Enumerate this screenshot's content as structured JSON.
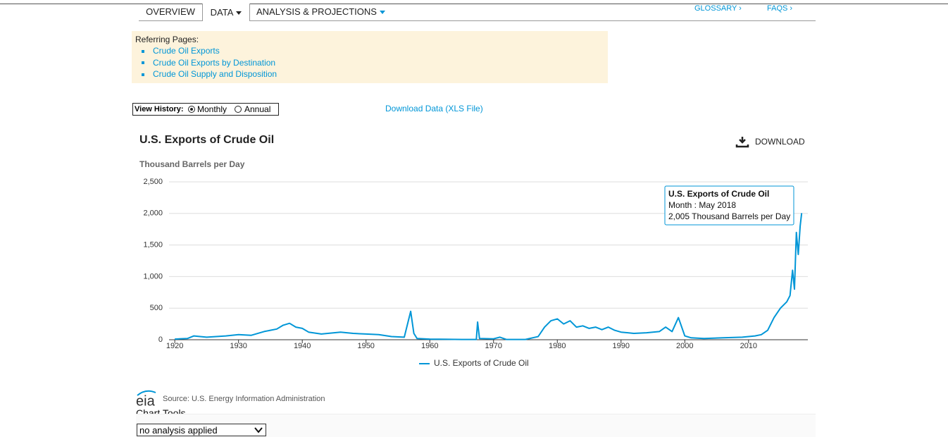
{
  "nav": {
    "tabs": [
      "OVERVIEW",
      "DATA",
      "ANALYSIS & PROJECTIONS"
    ],
    "links": [
      "GLOSSARY ›",
      "FAQS ›"
    ]
  },
  "referring": {
    "title": "Referring Pages:",
    "items": [
      "Crude Oil Exports",
      "Crude Oil Exports by Destination",
      "Crude Oil Supply and Disposition"
    ]
  },
  "view_history": {
    "label": "View History:",
    "options": [
      "Monthly",
      "Annual"
    ]
  },
  "download_data": "Download Data (XLS File)",
  "chart_data": {
    "type": "line",
    "title": "U.S. Exports of Crude Oil",
    "download_label": "DOWNLOAD",
    "y_label": "Thousand Barrels per Day",
    "x": [
      1920,
      1922,
      1923,
      1925,
      1928,
      1930,
      1932,
      1934,
      1936,
      1937,
      1938,
      1939,
      1940,
      1941,
      1943,
      1946,
      1948,
      1950,
      1952,
      1954,
      1956,
      1957,
      1957.5,
      1958,
      1960,
      1965,
      1967.3,
      1967.5,
      1967.8,
      1970,
      1971,
      1972,
      1975,
      1977,
      1978,
      1979,
      1980,
      1981,
      1982,
      1983,
      1984,
      1985,
      1986,
      1987,
      1988,
      1989,
      1990,
      1992,
      1994,
      1996,
      1997,
      1998,
      1999,
      2000,
      2001,
      2003,
      2006,
      2009,
      2011,
      2012,
      2013,
      2014,
      2015,
      2016,
      2016.5,
      2016.9,
      2017.2,
      2017.5,
      2017.8,
      2018.1,
      2018.33
    ],
    "series": [
      {
        "name": "U.S. Exports of Crude Oil",
        "color": "#0096d7",
        "values": [
          10,
          20,
          60,
          40,
          60,
          80,
          70,
          130,
          170,
          230,
          260,
          200,
          180,
          120,
          90,
          120,
          100,
          90,
          80,
          50,
          40,
          450,
          100,
          20,
          10,
          5,
          5,
          280,
          20,
          15,
          40,
          5,
          5,
          50,
          200,
          300,
          330,
          250,
          300,
          200,
          220,
          180,
          200,
          160,
          200,
          150,
          120,
          100,
          110,
          130,
          200,
          130,
          350,
          60,
          30,
          20,
          30,
          40,
          60,
          80,
          150,
          350,
          500,
          600,
          700,
          1100,
          800,
          1700,
          1350,
          1800,
          2005
        ]
      }
    ],
    "xlim": [
      1919.1,
      2019.3
    ],
    "xticks": [
      1920,
      1930,
      1940,
      1950,
      1960,
      1970,
      1980,
      1990,
      2000,
      2010
    ],
    "ylim": [
      0,
      2500
    ],
    "yticks": [
      0,
      500,
      {
        "value": 1000,
        "label": "1,000"
      },
      {
        "value": 1500,
        "label": "1,500"
      },
      {
        "value": 2000,
        "label": "2,000"
      },
      {
        "value": 2500,
        "label": "2,500"
      }
    ],
    "grid": true,
    "tooltip": {
      "title": "U.S. Exports of Crude Oil",
      "month": "Month : May 2018",
      "value": "2,005 Thousand Barrels per Day"
    }
  },
  "logo": "eia",
  "source": "Source: U.S. Energy Information Administration",
  "chart_tools": {
    "title": "Chart Tools",
    "select": "no analysis applied"
  }
}
